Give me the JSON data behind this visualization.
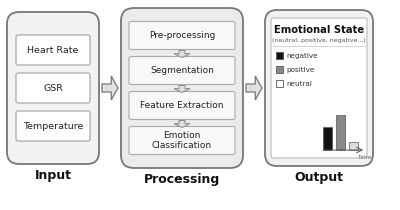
{
  "bg_color": "#ffffff",
  "input_label": "Input",
  "processing_label": "Processing",
  "output_label": "Output",
  "input_items": [
    "Heart Rate",
    "GSR",
    "Temperature"
  ],
  "processing_items": [
    "Pre-processing",
    "Segmentation",
    "Feature Extraction",
    "Emotion\nClassification"
  ],
  "output_title": "Emotional State",
  "output_subtitle": "(neutral, positive, negative...)",
  "legend_items": [
    "negative",
    "positive",
    "neutral"
  ],
  "legend_colors": [
    "#111111",
    "#888888",
    "#ffffff"
  ],
  "bar_values": [
    0.65,
    1.0,
    0.22
  ],
  "bar_colors": [
    "#111111",
    "#888888",
    "#dddddd"
  ],
  "time_label": "Time"
}
